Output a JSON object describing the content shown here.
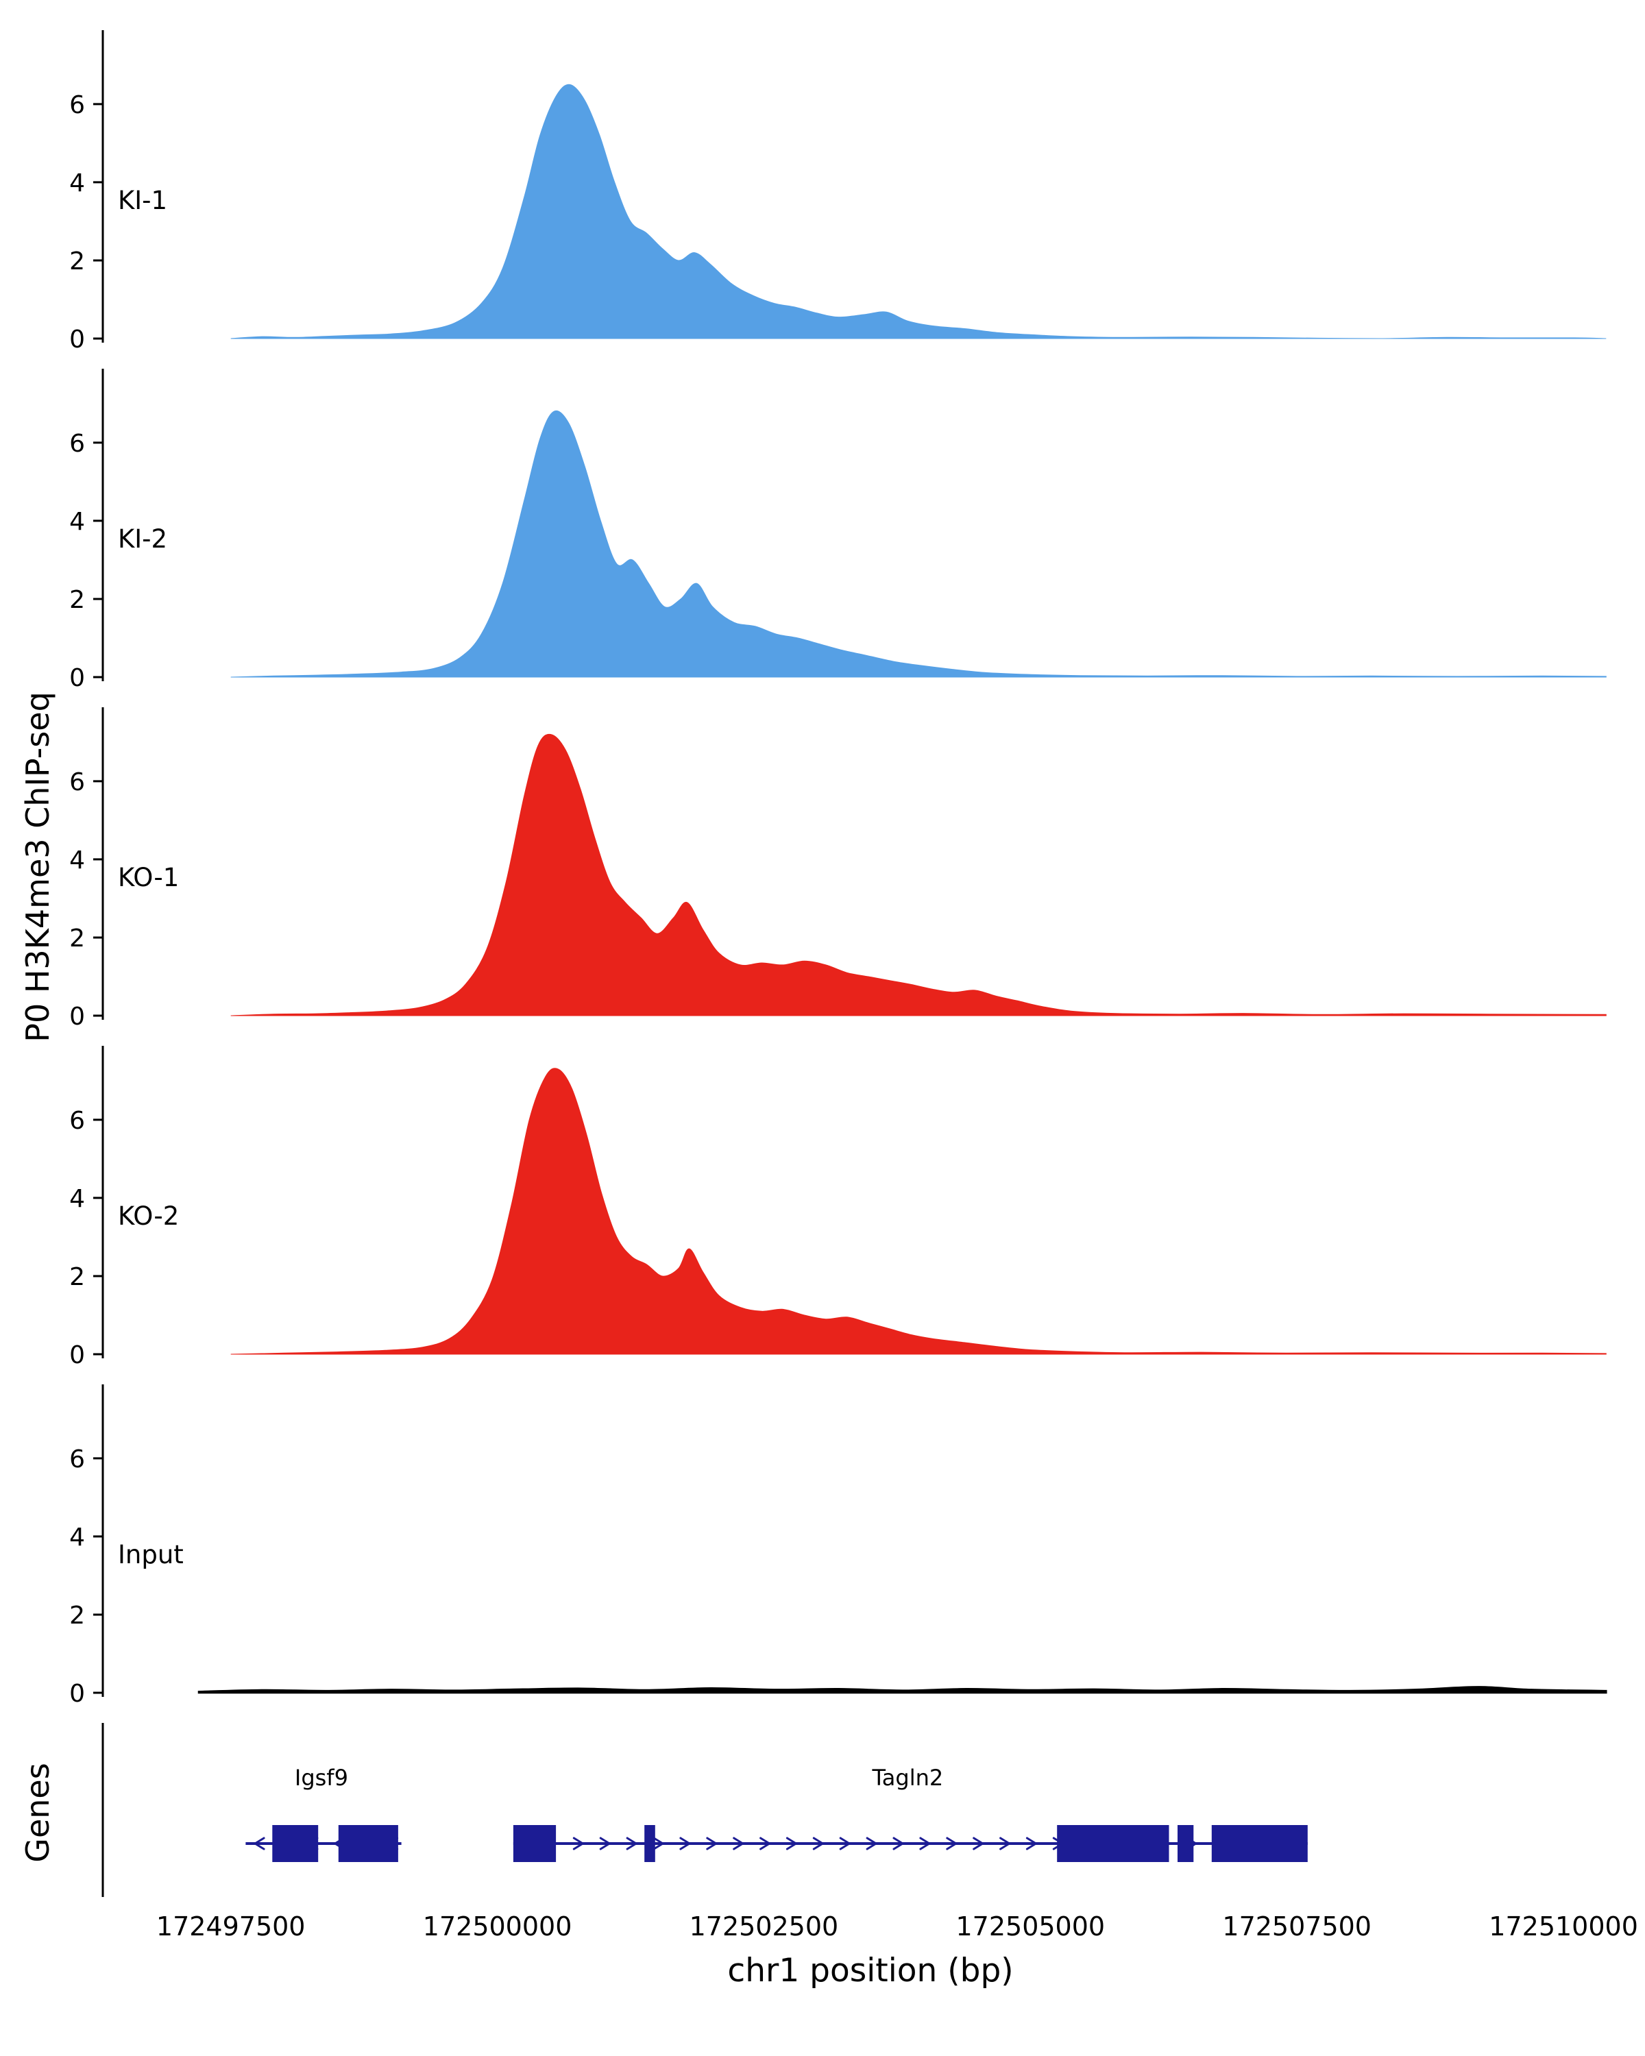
{
  "figure": {
    "ylabel": "P0 H3K4me3 ChIP-seq",
    "genes_label": "Genes",
    "xlabel": "chr1 position (bp)"
  },
  "chart_data": {
    "type": "area",
    "title": "",
    "xlabel": "chr1 position (bp)",
    "ylabel": "P0 H3K4me3 ChIP-seq",
    "x_domain": [
      172496300,
      172510700
    ],
    "x_ticks": [
      172497500,
      172500000,
      172502500,
      172505000,
      172507500,
      172510000
    ],
    "y_ticks": [
      0,
      2,
      4,
      6
    ],
    "y_max": 7.7,
    "legend_position": "none",
    "grid": false,
    "tracks": [
      {
        "name": "KI-1",
        "color": "#56a0e5",
        "points": [
          [
            172497500,
            0
          ],
          [
            172497800,
            0.05
          ],
          [
            172498100,
            0.03
          ],
          [
            172498400,
            0.06
          ],
          [
            172498700,
            0.09
          ],
          [
            172499000,
            0.12
          ],
          [
            172499300,
            0.2
          ],
          [
            172499600,
            0.4
          ],
          [
            172499850,
            0.9
          ],
          [
            172500050,
            1.8
          ],
          [
            172500250,
            3.6
          ],
          [
            172500400,
            5.2
          ],
          [
            172500550,
            6.2
          ],
          [
            172500680,
            6.5
          ],
          [
            172500820,
            6.1
          ],
          [
            172500960,
            5.2
          ],
          [
            172501100,
            4.0
          ],
          [
            172501250,
            3.0
          ],
          [
            172501400,
            2.7
          ],
          [
            172501550,
            2.3
          ],
          [
            172501700,
            2.0
          ],
          [
            172501850,
            2.2
          ],
          [
            172502000,
            1.9
          ],
          [
            172502200,
            1.4
          ],
          [
            172502400,
            1.1
          ],
          [
            172502600,
            0.9
          ],
          [
            172502800,
            0.8
          ],
          [
            172503000,
            0.65
          ],
          [
            172503200,
            0.55
          ],
          [
            172503450,
            0.62
          ],
          [
            172503650,
            0.68
          ],
          [
            172503850,
            0.45
          ],
          [
            172504100,
            0.32
          ],
          [
            172504400,
            0.25
          ],
          [
            172504700,
            0.15
          ],
          [
            172505000,
            0.1
          ],
          [
            172505400,
            0.05
          ],
          [
            172505900,
            0.03
          ],
          [
            172506500,
            0.04
          ],
          [
            172507100,
            0.03
          ],
          [
            172507700,
            0.01
          ],
          [
            172508300,
            0
          ],
          [
            172508900,
            0.03
          ],
          [
            172509500,
            0.02
          ],
          [
            172510100,
            0.02
          ],
          [
            172510400,
            0
          ]
        ]
      },
      {
        "name": "KI-2",
        "color": "#56a0e5",
        "points": [
          [
            172497500,
            0
          ],
          [
            172497900,
            0.03
          ],
          [
            172498300,
            0.05
          ],
          [
            172498700,
            0.08
          ],
          [
            172499100,
            0.13
          ],
          [
            172499400,
            0.22
          ],
          [
            172499650,
            0.5
          ],
          [
            172499850,
            1.1
          ],
          [
            172500050,
            2.4
          ],
          [
            172500250,
            4.5
          ],
          [
            172500400,
            6.1
          ],
          [
            172500530,
            6.8
          ],
          [
            172500670,
            6.5
          ],
          [
            172500820,
            5.4
          ],
          [
            172500970,
            4.0
          ],
          [
            172501120,
            2.9
          ],
          [
            172501270,
            3.0
          ],
          [
            172501420,
            2.4
          ],
          [
            172501570,
            1.8
          ],
          [
            172501720,
            2.0
          ],
          [
            172501870,
            2.4
          ],
          [
            172502020,
            1.8
          ],
          [
            172502220,
            1.4
          ],
          [
            172502420,
            1.3
          ],
          [
            172502620,
            1.1
          ],
          [
            172502820,
            1.0
          ],
          [
            172503020,
            0.85
          ],
          [
            172503220,
            0.7
          ],
          [
            172503470,
            0.55
          ],
          [
            172503720,
            0.4
          ],
          [
            172503970,
            0.3
          ],
          [
            172504270,
            0.2
          ],
          [
            172504570,
            0.12
          ],
          [
            172504970,
            0.07
          ],
          [
            172505470,
            0.04
          ],
          [
            172506100,
            0.03
          ],
          [
            172506800,
            0.04
          ],
          [
            172507500,
            0.02
          ],
          [
            172508200,
            0.03
          ],
          [
            172509000,
            0.02
          ],
          [
            172509800,
            0.03
          ],
          [
            172510400,
            0.02
          ]
        ]
      },
      {
        "name": "KO-1",
        "color": "#e8231b",
        "points": [
          [
            172497500,
            0
          ],
          [
            172497900,
            0.04
          ],
          [
            172498300,
            0.05
          ],
          [
            172498650,
            0.08
          ],
          [
            172498950,
            0.12
          ],
          [
            172499250,
            0.2
          ],
          [
            172499500,
            0.4
          ],
          [
            172499700,
            0.8
          ],
          [
            172499900,
            1.7
          ],
          [
            172500080,
            3.4
          ],
          [
            172500250,
            5.6
          ],
          [
            172500380,
            6.9
          ],
          [
            172500500,
            7.2
          ],
          [
            172500640,
            6.8
          ],
          [
            172500780,
            5.8
          ],
          [
            172500920,
            4.5
          ],
          [
            172501060,
            3.4
          ],
          [
            172501200,
            2.9
          ],
          [
            172501350,
            2.5
          ],
          [
            172501500,
            2.1
          ],
          [
            172501650,
            2.5
          ],
          [
            172501780,
            2.9
          ],
          [
            172501930,
            2.2
          ],
          [
            172502080,
            1.6
          ],
          [
            172502280,
            1.3
          ],
          [
            172502480,
            1.35
          ],
          [
            172502680,
            1.3
          ],
          [
            172502880,
            1.4
          ],
          [
            172503080,
            1.3
          ],
          [
            172503280,
            1.1
          ],
          [
            172503480,
            1.0
          ],
          [
            172503680,
            0.9
          ],
          [
            172503880,
            0.8
          ],
          [
            172504080,
            0.68
          ],
          [
            172504280,
            0.6
          ],
          [
            172504480,
            0.65
          ],
          [
            172504680,
            0.5
          ],
          [
            172504880,
            0.38
          ],
          [
            172505080,
            0.25
          ],
          [
            172505380,
            0.12
          ],
          [
            172505780,
            0.06
          ],
          [
            172506400,
            0.04
          ],
          [
            172507000,
            0.06
          ],
          [
            172507700,
            0.03
          ],
          [
            172508500,
            0.05
          ],
          [
            172509300,
            0.04
          ],
          [
            172510400,
            0.03
          ]
        ]
      },
      {
        "name": "KO-2",
        "color": "#e8231b",
        "points": [
          [
            172497500,
            0
          ],
          [
            172498000,
            0.03
          ],
          [
            172498500,
            0.06
          ],
          [
            172498950,
            0.1
          ],
          [
            172499300,
            0.18
          ],
          [
            172499550,
            0.4
          ],
          [
            172499750,
            0.9
          ],
          [
            172499950,
            1.9
          ],
          [
            172500130,
            3.8
          ],
          [
            172500300,
            6.0
          ],
          [
            172500450,
            7.1
          ],
          [
            172500570,
            7.3
          ],
          [
            172500700,
            6.8
          ],
          [
            172500840,
            5.6
          ],
          [
            172500980,
            4.1
          ],
          [
            172501120,
            3.0
          ],
          [
            172501260,
            2.5
          ],
          [
            172501400,
            2.3
          ],
          [
            172501550,
            2.0
          ],
          [
            172501700,
            2.2
          ],
          [
            172501800,
            2.7
          ],
          [
            172501930,
            2.1
          ],
          [
            172502080,
            1.5
          ],
          [
            172502280,
            1.2
          ],
          [
            172502480,
            1.1
          ],
          [
            172502680,
            1.15
          ],
          [
            172502880,
            1.0
          ],
          [
            172503080,
            0.9
          ],
          [
            172503280,
            0.95
          ],
          [
            172503480,
            0.8
          ],
          [
            172503680,
            0.65
          ],
          [
            172503880,
            0.5
          ],
          [
            172504080,
            0.4
          ],
          [
            172504380,
            0.3
          ],
          [
            172504680,
            0.2
          ],
          [
            172504980,
            0.12
          ],
          [
            172505380,
            0.07
          ],
          [
            172505880,
            0.04
          ],
          [
            172506600,
            0.05
          ],
          [
            172507400,
            0.03
          ],
          [
            172508200,
            0.04
          ],
          [
            172509000,
            0.03
          ],
          [
            172509800,
            0.03
          ],
          [
            172510400,
            0.02
          ]
        ]
      },
      {
        "name": "Input",
        "color": "#000000",
        "points": [
          [
            172497200,
            0.03
          ],
          [
            172497800,
            0.07
          ],
          [
            172498400,
            0.05
          ],
          [
            172499000,
            0.08
          ],
          [
            172499600,
            0.06
          ],
          [
            172500200,
            0.09
          ],
          [
            172500800,
            0.11
          ],
          [
            172501400,
            0.07
          ],
          [
            172502000,
            0.12
          ],
          [
            172502600,
            0.08
          ],
          [
            172503200,
            0.1
          ],
          [
            172503800,
            0.06
          ],
          [
            172504400,
            0.1
          ],
          [
            172505000,
            0.07
          ],
          [
            172505600,
            0.09
          ],
          [
            172506200,
            0.06
          ],
          [
            172506800,
            0.1
          ],
          [
            172507400,
            0.07
          ],
          [
            172508000,
            0.05
          ],
          [
            172508600,
            0.08
          ],
          [
            172509200,
            0.15
          ],
          [
            172509700,
            0.08
          ],
          [
            172510400,
            0.05
          ]
        ]
      }
    ],
    "genes": {
      "color": "#1c1c94",
      "items": [
        {
          "name": "Igsf9",
          "strand": "-",
          "start": 172497640,
          "end": 172499100,
          "exons": [
            [
              172497890,
              172498320
            ],
            [
              172498510,
              172499070
            ]
          ],
          "label_x": 172498350
        },
        {
          "name": "Tagln2",
          "strand": "+",
          "start": 172500150,
          "end": 172507600,
          "exons": [
            [
              172500150,
              172500550
            ],
            [
              172501380,
              172501480
            ],
            [
              172505250,
              172506300
            ],
            [
              172506380,
              172506530
            ],
            [
              172506700,
              172507600
            ]
          ],
          "label_x": 172503850
        }
      ]
    }
  }
}
